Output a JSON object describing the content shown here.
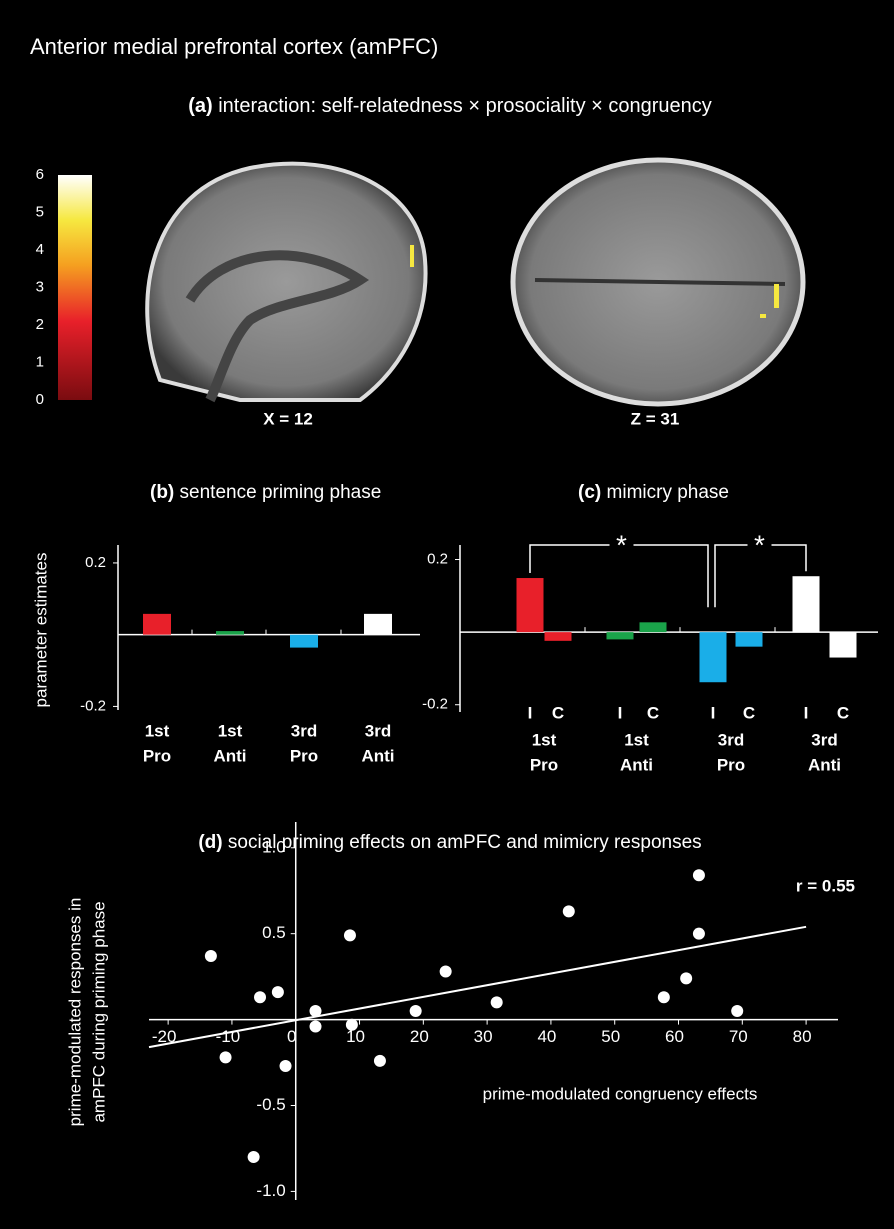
{
  "title": "Anterior medial prefrontal cortex (amPFC)",
  "panel_a": {
    "label": "(a)",
    "title": "interaction: self-relatedness × prosociality × congruency",
    "colorbar": {
      "range": [
        0,
        6
      ],
      "ticks": [
        0,
        1,
        2,
        3,
        4,
        5,
        6
      ]
    },
    "captions": [
      "X = 12",
      "Z = 31"
    ]
  },
  "chart_data": [
    {
      "type": "bar",
      "label": "(b)",
      "title": "sentence priming phase",
      "y_label": "parameter estimates",
      "categories": [
        [
          "1st",
          "Pro"
        ],
        [
          "1st",
          "Anti"
        ],
        [
          "3rd",
          "Pro"
        ],
        [
          "3rd",
          "Anti"
        ]
      ],
      "values": [
        0.058,
        0.01,
        -0.036,
        0.058
      ],
      "colors": [
        "#e8202a",
        "#1aa34a",
        "#1aaee8",
        "#ffffff"
      ],
      "ylim": [
        -0.21,
        0.25
      ],
      "yticks": [
        -0.2,
        0.2
      ]
    },
    {
      "type": "bar",
      "label": "(c)",
      "title": "mimicry phase",
      "groups": [
        [
          "1st",
          "Pro"
        ],
        [
          "1st",
          "Anti"
        ],
        [
          "3rd",
          "Pro"
        ],
        [
          "3rd",
          "Anti"
        ]
      ],
      "categories": [
        "I",
        "C",
        "I",
        "C",
        "I",
        "C",
        "I",
        "C"
      ],
      "values": [
        0.149,
        -0.024,
        -0.02,
        0.027,
        -0.138,
        -0.04,
        0.154,
        -0.07
      ],
      "colors": [
        "#e8202a",
        "#e8202a",
        "#1aa34a",
        "#1aa34a",
        "#1aaee8",
        "#1aaee8",
        "#ffffff",
        "#ffffff"
      ],
      "ylim": [
        -0.22,
        0.24
      ],
      "yticks": [
        -0.2,
        0.2
      ],
      "annotations": [
        "*",
        "*"
      ]
    },
    {
      "type": "scatter",
      "label": "(d)",
      "title": "social priming effects on amPFC and mimicry responses",
      "x_label": "prime-modulated congruency effects",
      "y_label": [
        "prime-modulated responses in",
        "amPFC during priming phase"
      ],
      "annotation": "r = 0.55",
      "color": "#ffffff",
      "x": [
        -13.3,
        -11,
        -5.6,
        -2.8,
        -1.6,
        -6.6,
        3.1,
        3.1,
        8.5,
        8.8,
        13.2,
        18.8,
        23.5,
        31.5,
        42.8,
        57.7,
        61.2,
        63.2,
        63.2,
        69.2
      ],
      "y": [
        0.37,
        -0.22,
        0.13,
        0.16,
        -0.27,
        -0.8,
        0.05,
        -0.04,
        0.49,
        -0.03,
        -0.24,
        0.05,
        0.28,
        0.1,
        0.63,
        0.13,
        0.24,
        0.5,
        0.84,
        0.05
      ],
      "trendline": {
        "x": [
          -23,
          80
        ],
        "y": [
          -0.16,
          0.54
        ]
      },
      "xlim": [
        -23,
        85
      ],
      "ylim": [
        -1.05,
        1.15
      ],
      "xticks": [
        -20,
        -10,
        0,
        10,
        20,
        30,
        40,
        50,
        60,
        70,
        80
      ],
      "yticks": [
        {
          "value": -1,
          "label": "-1.0"
        },
        -0.5,
        0.5,
        {
          "value": 1,
          "label": "1.0"
        }
      ]
    }
  ]
}
